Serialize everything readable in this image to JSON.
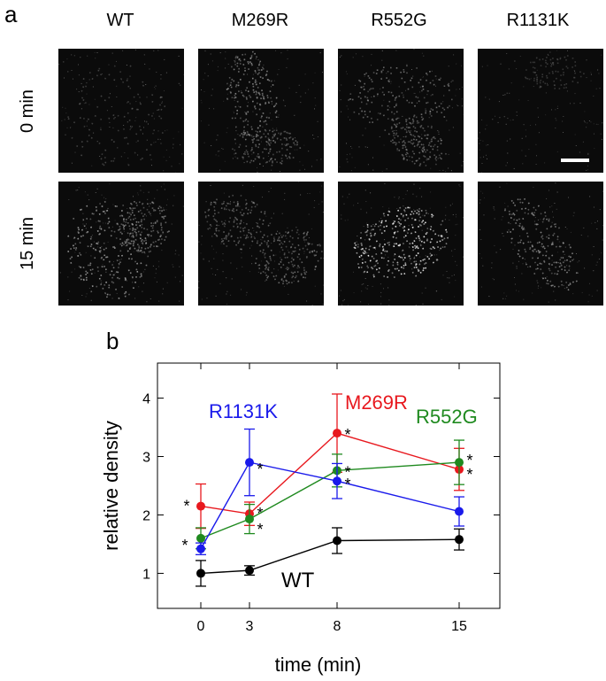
{
  "panel_a": {
    "letter": "a",
    "columns": [
      "WT",
      "M269R",
      "R552G",
      "R1131K"
    ],
    "rows": [
      "0 min",
      "15 min"
    ],
    "scale_bar": true
  },
  "panel_b": {
    "letter": "b"
  },
  "chart_data": {
    "type": "line",
    "xlabel": "time (min)",
    "ylabel": "relative density",
    "x_ticks": [
      "0",
      "3",
      "8",
      "15"
    ],
    "y_ticks": [
      1,
      2,
      3,
      4
    ],
    "ylim": [
      0.4,
      4.6
    ],
    "grid": false,
    "series": [
      {
        "name": "WT",
        "color": "#000000",
        "values": [
          1.0,
          1.05,
          1.56,
          1.58
        ],
        "errors": [
          0.22,
          0.08,
          0.22,
          0.18
        ],
        "significant": [
          false,
          false,
          false,
          false
        ]
      },
      {
        "name": "M269R",
        "color": "#e8181e",
        "values": [
          2.15,
          2.02,
          3.4,
          2.78
        ],
        "errors": [
          0.38,
          0.2,
          0.67,
          0.36
        ],
        "significant": [
          true,
          true,
          true,
          true
        ]
      },
      {
        "name": "R552G",
        "color": "#1f8a1f",
        "values": [
          1.6,
          1.93,
          2.76,
          2.9
        ],
        "errors": [
          0.18,
          0.25,
          0.28,
          0.38
        ],
        "significant": [
          true,
          true,
          true,
          true
        ]
      },
      {
        "name": "R1131K",
        "color": "#1a1aeb",
        "values": [
          1.42,
          2.9,
          2.58,
          2.06
        ],
        "errors": [
          0.1,
          0.57,
          0.3,
          0.25
        ],
        "significant": [
          false,
          true,
          true,
          false
        ]
      }
    ],
    "significance_marker": "*"
  }
}
